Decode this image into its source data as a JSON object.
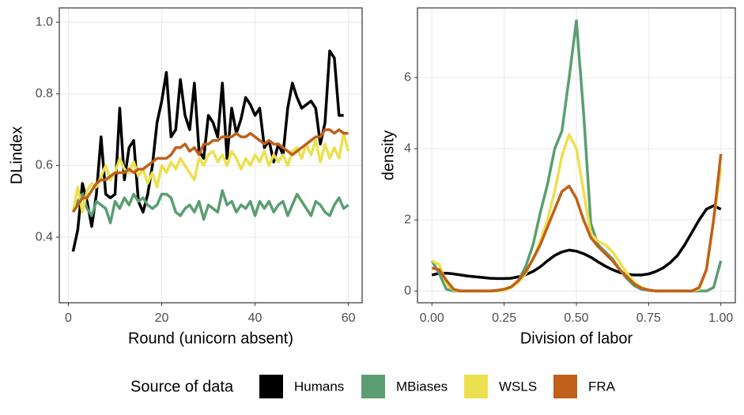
{
  "chart_data": [
    {
      "type": "line",
      "x_label": "Round (unicorn absent)",
      "y_label": "DLindex",
      "grid": true,
      "x": [
        1,
        2,
        3,
        4,
        5,
        6,
        7,
        8,
        9,
        10,
        11,
        12,
        13,
        14,
        15,
        16,
        17,
        18,
        19,
        20,
        21,
        22,
        23,
        24,
        25,
        26,
        27,
        28,
        29,
        30,
        31,
        32,
        33,
        34,
        35,
        36,
        37,
        38,
        39,
        40,
        41,
        42,
        43,
        44,
        45,
        46,
        47,
        48,
        49,
        50,
        51,
        52,
        53,
        54,
        55,
        56,
        57,
        58,
        59,
        60
      ],
      "xlim": [
        -1.95,
        62.95
      ],
      "xticks": [
        0,
        20,
        40,
        60
      ],
      "ylim": [
        0.217,
        1.04
      ],
      "yticks": [
        0.4,
        0.6,
        0.8,
        {
          "value": 1,
          "label": "1.0"
        }
      ],
      "series": [
        {
          "name": "Humans",
          "color": "#000000",
          "values": [
            0.36,
            0.42,
            0.55,
            0.5,
            0.43,
            0.52,
            0.68,
            0.52,
            0.51,
            0.52,
            0.76,
            0.56,
            0.65,
            0.67,
            0.5,
            0.47,
            0.52,
            0.6,
            0.72,
            0.78,
            0.86,
            0.68,
            0.7,
            0.84,
            0.74,
            0.7,
            0.83,
            0.64,
            0.62,
            0.74,
            0.72,
            0.68,
            0.83,
            0.62,
            0.76,
            0.69,
            0.73,
            0.79,
            0.77,
            0.74,
            0.76,
            0.65,
            0.67,
            0.61,
            0.66,
            0.63,
            0.76,
            0.83,
            0.79,
            0.76,
            0.77,
            0.78,
            0.76,
            0.66,
            0.72,
            0.92,
            0.9,
            0.74,
            0.74,
            null
          ]
        },
        {
          "name": "MBiases",
          "color": "#5a9e72",
          "values": [
            0.47,
            0.5,
            0.52,
            0.48,
            0.46,
            0.5,
            0.49,
            0.48,
            0.44,
            0.5,
            0.48,
            0.51,
            0.49,
            0.52,
            0.5,
            0.51,
            0.49,
            0.48,
            0.49,
            0.52,
            0.52,
            0.51,
            0.47,
            0.46,
            0.48,
            0.49,
            0.47,
            0.5,
            0.45,
            0.49,
            0.48,
            0.47,
            0.53,
            0.49,
            0.5,
            0.47,
            0.49,
            0.48,
            0.5,
            0.46,
            0.5,
            0.48,
            0.5,
            0.47,
            0.49,
            0.5,
            0.46,
            0.49,
            0.52,
            0.5,
            0.48,
            0.46,
            0.5,
            0.49,
            0.47,
            0.46,
            0.49,
            0.51,
            0.48,
            0.49
          ]
        },
        {
          "name": "WSLS",
          "color": "#ece04e",
          "values": [
            0.47,
            0.54,
            0.47,
            0.53,
            0.55,
            0.54,
            0.57,
            0.6,
            0.56,
            0.58,
            0.62,
            0.59,
            0.58,
            0.61,
            0.57,
            0.59,
            0.55,
            0.58,
            0.54,
            0.6,
            0.58,
            0.61,
            0.59,
            0.62,
            0.6,
            0.58,
            0.56,
            0.62,
            0.6,
            0.63,
            0.64,
            0.61,
            0.63,
            0.6,
            0.64,
            0.62,
            0.59,
            0.62,
            0.6,
            0.63,
            0.61,
            0.64,
            0.6,
            0.63,
            0.61,
            0.63,
            0.6,
            0.64,
            0.65,
            0.62,
            0.66,
            0.63,
            0.67,
            0.61,
            0.66,
            0.62,
            0.65,
            0.62,
            0.69,
            0.64
          ]
        },
        {
          "name": "FRA",
          "color": "#c0601a",
          "values": [
            0.47,
            0.49,
            0.51,
            0.51,
            0.53,
            0.55,
            0.56,
            0.56,
            0.57,
            0.58,
            0.58,
            0.58,
            0.59,
            0.58,
            0.59,
            0.59,
            0.6,
            0.61,
            0.62,
            0.62,
            0.62,
            0.63,
            0.65,
            0.65,
            0.66,
            0.64,
            0.65,
            0.63,
            0.66,
            0.66,
            0.67,
            0.67,
            0.68,
            0.68,
            0.68,
            0.69,
            0.68,
            0.68,
            0.69,
            0.68,
            0.67,
            0.66,
            0.67,
            0.66,
            0.66,
            0.65,
            0.64,
            0.63,
            0.64,
            0.65,
            0.66,
            0.67,
            0.68,
            0.68,
            0.7,
            0.7,
            0.69,
            0.7,
            0.69,
            0.69
          ]
        }
      ]
    },
    {
      "type": "line",
      "x_label": "Division of labor",
      "y_label": "density",
      "grid": true,
      "x": [
        0,
        0.025,
        0.05,
        0.075,
        0.1,
        0.125,
        0.15,
        0.175,
        0.2,
        0.225,
        0.25,
        0.275,
        0.3,
        0.325,
        0.35,
        0.375,
        0.4,
        0.425,
        0.45,
        0.475,
        0.5,
        0.525,
        0.55,
        0.575,
        0.6,
        0.625,
        0.65,
        0.675,
        0.7,
        0.725,
        0.75,
        0.775,
        0.8,
        0.825,
        0.85,
        0.875,
        0.9,
        0.925,
        0.95,
        0.975,
        1
      ],
      "xlim": [
        -0.05,
        1.05
      ],
      "xticks": [
        {
          "value": 0,
          "label": "0.00"
        },
        {
          "value": 0.25,
          "label": "0.25"
        },
        {
          "value": 0.5,
          "label": "0.50"
        },
        {
          "value": 0.75,
          "label": "0.75"
        },
        {
          "value": 1,
          "label": "1.00"
        }
      ],
      "ylim": [
        -0.33,
        7.96
      ],
      "yticks": [
        0,
        2,
        4,
        6
      ],
      "series": [
        {
          "name": "Humans",
          "color": "#000000",
          "values": [
            0.45,
            0.5,
            0.5,
            0.48,
            0.45,
            0.42,
            0.4,
            0.38,
            0.36,
            0.35,
            0.35,
            0.36,
            0.4,
            0.46,
            0.55,
            0.68,
            0.85,
            1.0,
            1.1,
            1.15,
            1.12,
            1.05,
            0.95,
            0.82,
            0.7,
            0.6,
            0.52,
            0.47,
            0.45,
            0.45,
            0.48,
            0.55,
            0.65,
            0.8,
            1.0,
            1.3,
            1.65,
            2.0,
            2.3,
            2.4,
            2.3
          ]
        },
        {
          "name": "MBiases",
          "color": "#5a9e72",
          "values": [
            0.85,
            0.5,
            0.05,
            0,
            0,
            0,
            0,
            0,
            0,
            0,
            0.02,
            0.1,
            0.3,
            0.7,
            1.3,
            2.2,
            3.0,
            4.0,
            4.5,
            6.0,
            7.6,
            5.0,
            1.9,
            1.3,
            1.1,
            0.9,
            0.6,
            0.35,
            0.15,
            0.05,
            0.02,
            0,
            0,
            0,
            0,
            0,
            0,
            0,
            0,
            0.1,
            0.85
          ]
        },
        {
          "name": "WSLS",
          "color": "#ece04e",
          "values": [
            0.85,
            0.75,
            0.2,
            0.02,
            0,
            0,
            0,
            0,
            0,
            0,
            0.02,
            0.1,
            0.25,
            0.5,
            0.9,
            1.4,
            2.0,
            2.8,
            3.8,
            4.4,
            4.0,
            2.8,
            1.6,
            1.4,
            1.3,
            1.1,
            0.8,
            0.5,
            0.25,
            0.1,
            0.03,
            0,
            0,
            0,
            0,
            0,
            0,
            0.05,
            0.6,
            2.0,
            3.45
          ]
        },
        {
          "name": "FRA",
          "color": "#c0601a",
          "values": [
            0.65,
            0.6,
            0.3,
            0.05,
            0,
            0,
            0,
            0,
            0,
            0.02,
            0.05,
            0.12,
            0.3,
            0.55,
            0.9,
            1.3,
            1.8,
            2.3,
            2.8,
            2.95,
            2.6,
            2.0,
            1.5,
            1.25,
            1.05,
            0.85,
            0.6,
            0.4,
            0.2,
            0.08,
            0.03,
            0,
            0,
            0,
            0,
            0,
            0,
            0.1,
            0.6,
            2.0,
            3.85
          ]
        }
      ]
    }
  ],
  "legend": {
    "title": "Source of data"
  }
}
